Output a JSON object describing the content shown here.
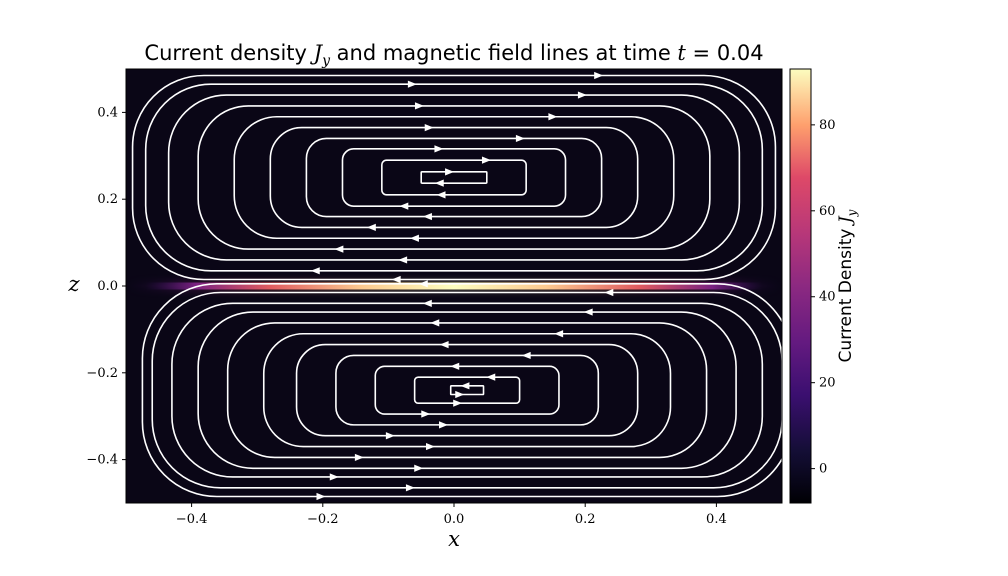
{
  "chart_data": {
    "type": "heatmap",
    "title": {
      "prefix": "Current density ",
      "sym": "J",
      "sub": "y",
      "mid": " and magnetic field lines at time ",
      "var": "t",
      "eq": " = 0.04"
    },
    "xlabel": "x",
    "ylabel": "z",
    "xlim": [
      -0.5,
      0.5
    ],
    "ylim": [
      -0.5,
      0.5
    ],
    "xticks": [
      -0.4,
      -0.2,
      0.0,
      0.2,
      0.4
    ],
    "yticks": [
      -0.4,
      -0.2,
      0.0,
      0.2,
      0.4
    ],
    "xtick_labels": [
      "−0.4",
      "−0.2",
      "0.0",
      "0.2",
      "0.4"
    ],
    "ytick_labels": [
      "−0.4",
      "−0.2",
      "0.0",
      "0.2",
      "0.4"
    ],
    "colormap": "magma",
    "colorbar": {
      "label": "Current Density ",
      "label_sym": "J",
      "label_sub": "y",
      "range": [
        -8,
        93
      ],
      "ticks": [
        0,
        20,
        40,
        60,
        80
      ],
      "tick_labels": [
        "0",
        "20",
        "40",
        "60",
        "80"
      ]
    },
    "current_sheet": {
      "z": 0.0,
      "x_extent": [
        -0.47,
        0.47
      ],
      "peak": 93,
      "half_width_z": 0.008
    },
    "field_lines": {
      "color": "#ffffff",
      "o_points": [
        {
          "x": 0.0,
          "z": 0.25
        },
        {
          "x": 0.02,
          "z": -0.24
        }
      ],
      "upper_loop_semi_axes": [
        [
          0.05,
          0.013
        ],
        [
          0.11,
          0.04
        ],
        [
          0.17,
          0.066
        ],
        [
          0.225,
          0.09
        ],
        [
          0.28,
          0.115
        ],
        [
          0.335,
          0.14
        ],
        [
          0.39,
          0.165
        ],
        [
          0.435,
          0.19
        ],
        [
          0.47,
          0.215
        ],
        [
          0.49,
          0.235
        ]
      ],
      "lower_loop_semi_axes": [
        [
          0.025,
          0.01
        ],
        [
          0.08,
          0.03
        ],
        [
          0.14,
          0.055
        ],
        [
          0.2,
          0.08
        ],
        [
          0.26,
          0.105
        ],
        [
          0.31,
          0.13
        ],
        [
          0.365,
          0.155
        ],
        [
          0.41,
          0.18
        ],
        [
          0.45,
          0.2
        ],
        [
          0.48,
          0.225
        ],
        [
          0.495,
          0.245
        ]
      ]
    }
  }
}
